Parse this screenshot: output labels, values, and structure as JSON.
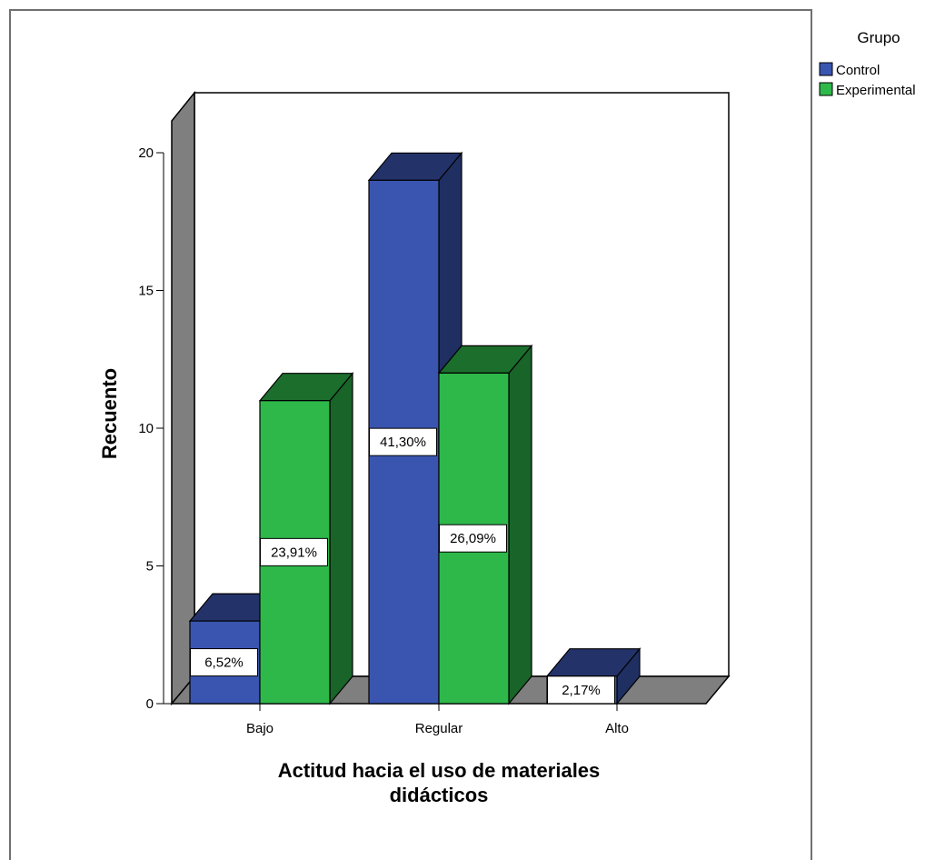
{
  "chart_data": {
    "type": "bar",
    "title": "",
    "xlabel": "Actitud hacia el uso de materiales didácticos",
    "ylabel": "Recuento",
    "categories": [
      "Bajo",
      "Regular",
      "Alto"
    ],
    "yticks": [
      "0",
      "5",
      "10",
      "15",
      "20"
    ],
    "ylim": [
      0,
      20
    ],
    "grid": false,
    "three_d": true,
    "legend": {
      "title": "Grupo",
      "placement": "right"
    },
    "series": [
      {
        "name": "Control",
        "color": "#3a55b0",
        "values": [
          3,
          19,
          1
        ],
        "labels": [
          "6,52%",
          "41,30%",
          "2,17%"
        ]
      },
      {
        "name": "Experimental",
        "color": "#2eb84a",
        "values": [
          11,
          12,
          0
        ],
        "labels": [
          "23,91%",
          "26,09%",
          ""
        ]
      }
    ]
  }
}
